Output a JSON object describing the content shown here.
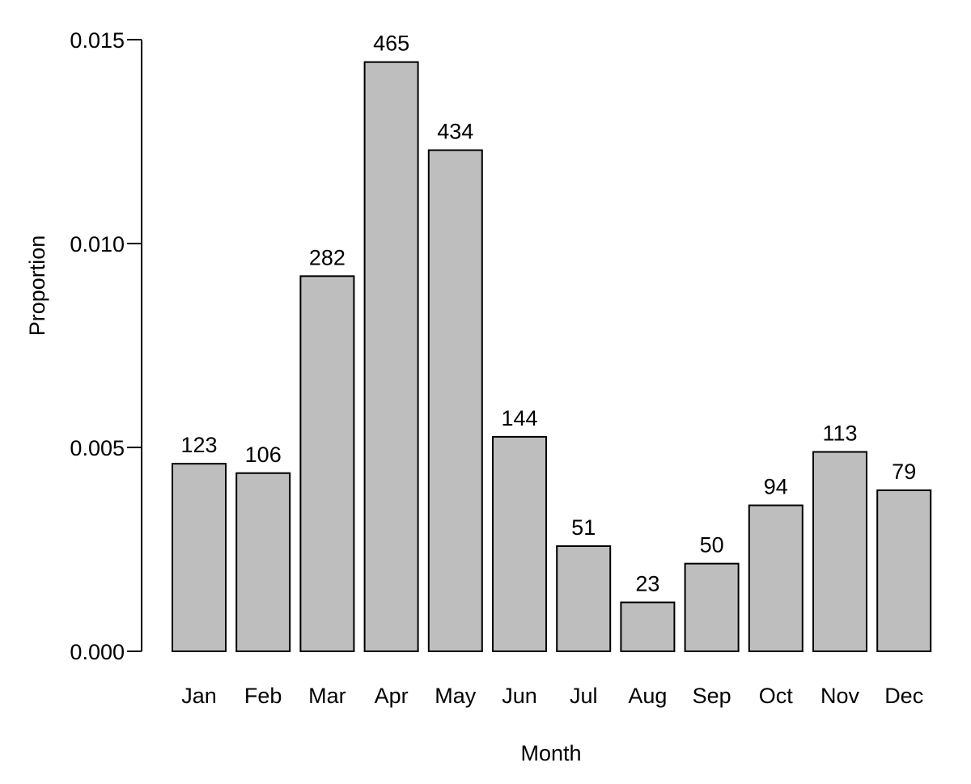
{
  "chart_data": {
    "type": "bar",
    "categories": [
      "Jan",
      "Feb",
      "Mar",
      "Apr",
      "May",
      "Jun",
      "Jul",
      "Aug",
      "Sep",
      "Oct",
      "Nov",
      "Dec"
    ],
    "values": [
      0.0046,
      0.00437,
      0.0092,
      0.01445,
      0.01229,
      0.00526,
      0.00258,
      0.0012,
      0.00215,
      0.00358,
      0.00489,
      0.00395
    ],
    "bar_labels": [
      "123",
      "106",
      "282",
      "465",
      "434",
      "144",
      "51",
      "23",
      "50",
      "94",
      "113",
      "79"
    ],
    "title": "",
    "xlabel": "Month",
    "ylabel": "Proportion",
    "ylim": [
      0,
      0.015
    ],
    "yticks": [
      0,
      0.005,
      0.01,
      0.015
    ],
    "ytick_labels": [
      "0.000",
      "0.005",
      "0.010",
      "0.015"
    ],
    "grid": false,
    "legend": "none",
    "bar_color": "#bebebe",
    "edge_color": "#000000"
  }
}
